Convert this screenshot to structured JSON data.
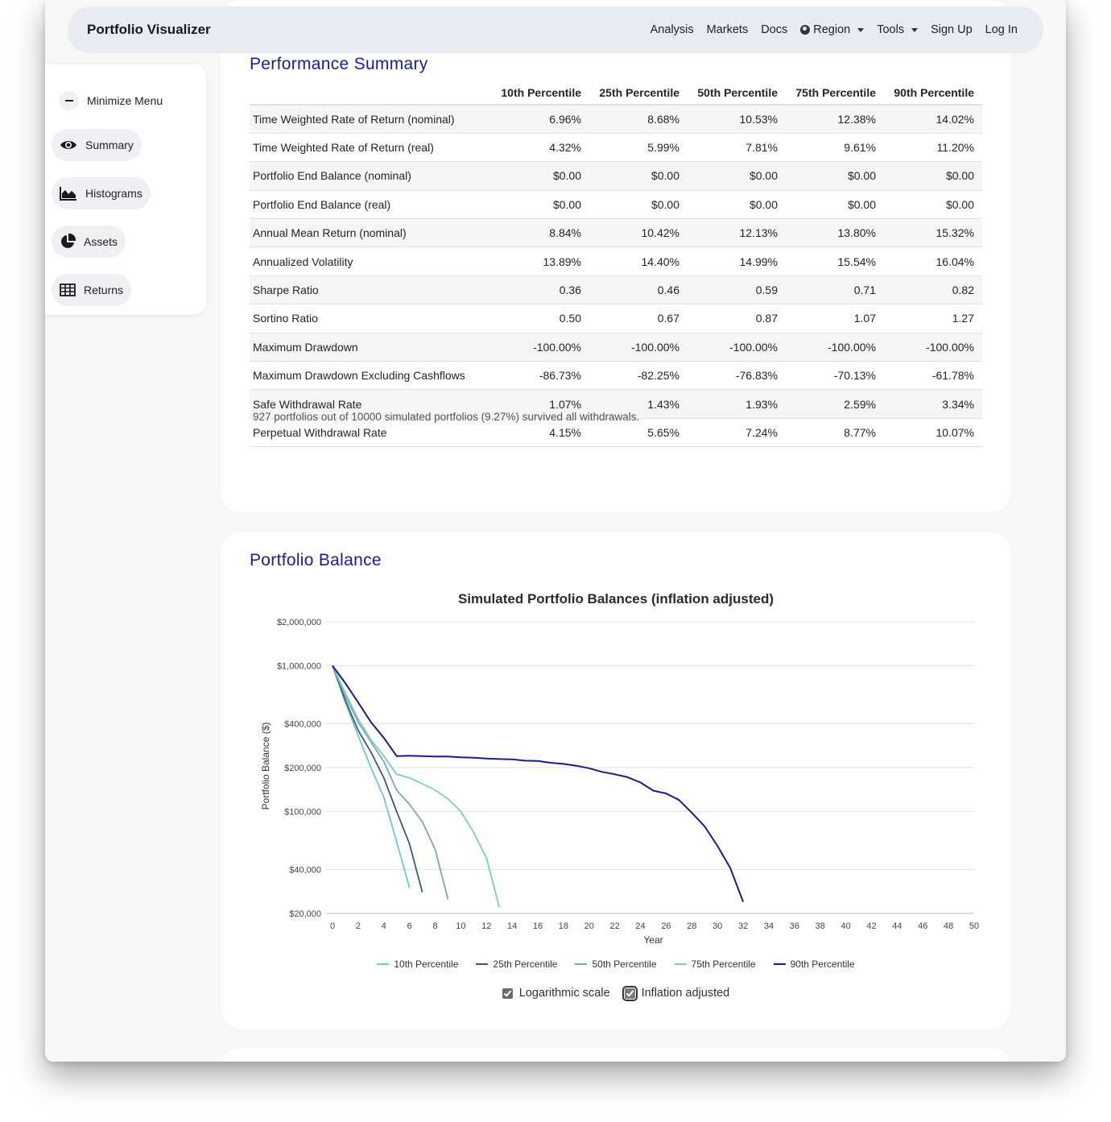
{
  "navbar": {
    "brand": "Portfolio Visualizer",
    "links": [
      "Analysis",
      "Markets",
      "Docs"
    ],
    "region": "Region",
    "tools": "Tools",
    "sign_up": "Sign Up",
    "log_in": "Log In"
  },
  "sidebar": {
    "minimize": "Minimize Menu",
    "items": [
      {
        "label": "Summary",
        "icon": "eye-icon"
      },
      {
        "label": "Histograms",
        "icon": "area-chart-icon"
      },
      {
        "label": "Assets",
        "icon": "pie-chart-icon"
      },
      {
        "label": "Returns",
        "icon": "table-icon"
      }
    ]
  },
  "performance": {
    "title": "Performance Summary",
    "headers": [
      "",
      "10th Percentile",
      "25th Percentile",
      "50th Percentile",
      "75th Percentile",
      "90th Percentile"
    ],
    "rows": [
      [
        "Time Weighted Rate of Return (nominal)",
        "6.96%",
        "8.68%",
        "10.53%",
        "12.38%",
        "14.02%"
      ],
      [
        "Time Weighted Rate of Return (real)",
        "4.32%",
        "5.99%",
        "7.81%",
        "9.61%",
        "11.20%"
      ],
      [
        "Portfolio End Balance (nominal)",
        "$0.00",
        "$0.00",
        "$0.00",
        "$0.00",
        "$0.00"
      ],
      [
        "Portfolio End Balance (real)",
        "$0.00",
        "$0.00",
        "$0.00",
        "$0.00",
        "$0.00"
      ],
      [
        "Annual Mean Return (nominal)",
        "8.84%",
        "10.42%",
        "12.13%",
        "13.80%",
        "15.32%"
      ],
      [
        "Annualized Volatility",
        "13.89%",
        "14.40%",
        "14.99%",
        "15.54%",
        "16.04%"
      ],
      [
        "Sharpe Ratio",
        "0.36",
        "0.46",
        "0.59",
        "0.71",
        "0.82"
      ],
      [
        "Sortino Ratio",
        "0.50",
        "0.67",
        "0.87",
        "1.07",
        "1.27"
      ],
      [
        "Maximum Drawdown",
        "-100.00%",
        "-100.00%",
        "-100.00%",
        "-100.00%",
        "-100.00%"
      ],
      [
        "Maximum Drawdown Excluding Cashflows",
        "-86.73%",
        "-82.25%",
        "-76.83%",
        "-70.13%",
        "-61.78%"
      ],
      [
        "Safe Withdrawal Rate",
        "1.07%",
        "1.43%",
        "1.93%",
        "2.59%",
        "3.34%"
      ],
      [
        "Perpetual Withdrawal Rate",
        "4.15%",
        "5.65%",
        "7.24%",
        "8.77%",
        "10.07%"
      ]
    ],
    "footnote": "927 portfolios out of 10000 simulated portfolios (9.27%) survived all withdrawals."
  },
  "balance": {
    "title": "Portfolio Balance",
    "log_scale_label": "Logarithmic scale",
    "inflation_label": "Inflation adjusted"
  },
  "chart_data": {
    "type": "line",
    "title": "Simulated Portfolio Balances (inflation adjusted)",
    "xlabel": "Year",
    "ylabel": "Portfolio Balance ($)",
    "xlim": [
      0,
      50
    ],
    "ylim": [
      20000,
      2000000
    ],
    "y_scale": "log",
    "y_ticks": [
      20000,
      40000,
      100000,
      200000,
      400000,
      1000000,
      2000000
    ],
    "y_tick_labels": [
      "$20,000",
      "$40,000",
      "$100,000",
      "$200,000",
      "$400,000",
      "$1,000,000",
      "$2,000,000"
    ],
    "x_ticks": [
      0,
      2,
      4,
      6,
      8,
      10,
      12,
      14,
      16,
      18,
      20,
      22,
      24,
      26,
      28,
      30,
      32,
      34,
      36,
      38,
      40,
      42,
      44,
      46,
      48,
      50
    ],
    "grid": true,
    "legend_position": "bottom",
    "series": [
      {
        "name": "10th Percentile",
        "color": "#6ec6d9",
        "x": [
          0,
          1,
          2,
          3,
          4,
          5,
          6
        ],
        "y": [
          1000000,
          560000,
          330000,
          200000,
          125000,
          62000,
          30000
        ]
      },
      {
        "name": "25th Percentile",
        "color": "#3d5a73",
        "x": [
          0,
          1,
          2,
          3,
          4,
          5,
          6,
          7
        ],
        "y": [
          1000000,
          580000,
          360000,
          255000,
          170000,
          100000,
          60000,
          28000
        ]
      },
      {
        "name": "50th Percentile",
        "color": "#7fa3c2",
        "x": [
          0,
          1,
          2,
          3,
          4,
          5,
          6,
          7,
          8,
          9
        ],
        "y": [
          1000000,
          620000,
          410000,
          300000,
          220000,
          140000,
          112000,
          85000,
          55000,
          25000
        ]
      },
      {
        "name": "75th Percentile",
        "color": "#79d1b1",
        "x": [
          0,
          1,
          2,
          3,
          4,
          5,
          6,
          7,
          8,
          9,
          10,
          11,
          12,
          13
        ],
        "y": [
          1000000,
          650000,
          430000,
          310000,
          240000,
          180000,
          170000,
          155000,
          140000,
          122000,
          100000,
          72000,
          48000,
          22000
        ]
      },
      {
        "name": "90th Percentile",
        "color": "#1a1a8c",
        "x": [
          0,
          1,
          2,
          3,
          4,
          5,
          6,
          7,
          8,
          9,
          10,
          11,
          12,
          13,
          14,
          15,
          16,
          17,
          18,
          19,
          20,
          21,
          22,
          23,
          24,
          25,
          26,
          27,
          28,
          29,
          30,
          31,
          32
        ],
        "y": [
          1000000,
          760000,
          560000,
          410000,
          320000,
          240000,
          241000,
          240000,
          238000,
          238000,
          235000,
          234000,
          231000,
          229000,
          228000,
          223000,
          222000,
          216000,
          212000,
          206000,
          198000,
          187000,
          180000,
          172000,
          158000,
          139000,
          133000,
          120000,
          98000,
          79000,
          58000,
          41000,
          24000
        ]
      }
    ]
  }
}
